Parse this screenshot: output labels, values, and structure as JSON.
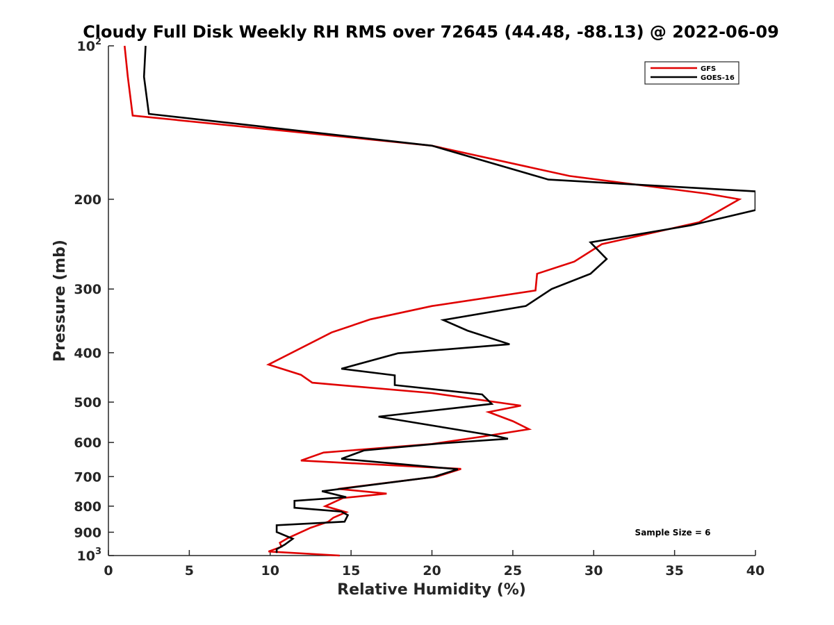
{
  "chart_data": {
    "type": "line",
    "title": "Cloudy Full Disk Weekly RH RMS over 72645 (44.48, -88.13) @ 2022-06-09",
    "xlabel": "Relative Humidity (%)",
    "ylabel": "Pressure (mb)",
    "xlim": [
      0,
      40
    ],
    "ylim": [
      100,
      1000
    ],
    "y_scale": "log",
    "y_reversed": true,
    "x_ticks": [
      "0",
      "5",
      "10",
      "15",
      "20",
      "25",
      "30",
      "35",
      "40"
    ],
    "y_ticks": [
      {
        "value": 100,
        "base": "10",
        "exp": "2"
      },
      {
        "value": 200,
        "label": "200"
      },
      {
        "value": 300,
        "label": "300"
      },
      {
        "value": 400,
        "label": "400"
      },
      {
        "value": 500,
        "label": "500"
      },
      {
        "value": 600,
        "label": "600"
      },
      {
        "value": 700,
        "label": "700"
      },
      {
        "value": 800,
        "label": "800"
      },
      {
        "value": 900,
        "label": "900"
      },
      {
        "value": 1000,
        "base": "10",
        "exp": "3"
      }
    ],
    "legend_position": "top-right",
    "annotation": "Sample Size = 6",
    "series": [
      {
        "name": "GFS",
        "color": "#e00000",
        "points": [
          [
            1.0,
            100
          ],
          [
            1.2,
            115
          ],
          [
            1.5,
            137
          ],
          [
            20,
            157
          ],
          [
            28.5,
            180
          ],
          [
            37,
            195
          ],
          [
            39,
            200
          ],
          [
            36.5,
            222
          ],
          [
            30.5,
            245
          ],
          [
            28.8,
            265
          ],
          [
            26.5,
            280
          ],
          [
            26.4,
            302
          ],
          [
            20,
            324
          ],
          [
            16.2,
            344
          ],
          [
            13.8,
            365
          ],
          [
            9.9,
            422
          ],
          [
            11.9,
            442
          ],
          [
            12.6,
            458
          ],
          [
            20,
            480
          ],
          [
            25.5,
            508
          ],
          [
            23.5,
            523
          ],
          [
            25,
            545
          ],
          [
            26,
            565
          ],
          [
            23,
            585
          ],
          [
            20,
            604
          ],
          [
            13.3,
            628
          ],
          [
            11.9,
            651
          ],
          [
            21.8,
            676
          ],
          [
            20.3,
            700
          ],
          [
            14.2,
            740
          ],
          [
            17.2,
            756
          ],
          [
            14.5,
            771
          ],
          [
            13.4,
            800
          ],
          [
            14.7,
            822
          ],
          [
            13.9,
            843
          ],
          [
            13.6,
            858
          ],
          [
            12.5,
            882
          ],
          [
            11.1,
            924
          ],
          [
            10.6,
            944
          ],
          [
            10.7,
            961
          ],
          [
            9.9,
            982
          ],
          [
            14.3,
            1000
          ]
        ]
      },
      {
        "name": "GOES-16",
        "color": "#000000",
        "points": [
          [
            2.3,
            100
          ],
          [
            2.2,
            115
          ],
          [
            2.5,
            136
          ],
          [
            20,
            157
          ],
          [
            27.2,
            183
          ],
          [
            40,
            193
          ],
          [
            40,
            210
          ],
          [
            36,
            225
          ],
          [
            29.8,
            243
          ],
          [
            30.8,
            262
          ],
          [
            29.8,
            280
          ],
          [
            27.4,
            300
          ],
          [
            25.8,
            324
          ],
          [
            20.7,
            345
          ],
          [
            22.2,
            362
          ],
          [
            24.8,
            385
          ],
          [
            17.9,
            401
          ],
          [
            14.4,
            430
          ],
          [
            17.7,
            443
          ],
          [
            17.7,
            463
          ],
          [
            23.1,
            483
          ],
          [
            23.7,
            504
          ],
          [
            16.7,
            534
          ],
          [
            24.0,
            583
          ],
          [
            24.7,
            590
          ],
          [
            20.4,
            603
          ],
          [
            15.8,
            622
          ],
          [
            14.4,
            646
          ],
          [
            21.6,
            677
          ],
          [
            20.1,
            701
          ],
          [
            16.2,
            727
          ],
          [
            13.2,
            748
          ],
          [
            14.7,
            768
          ],
          [
            11.5,
            781
          ],
          [
            11.5,
            806
          ],
          [
            14.4,
            820
          ],
          [
            14.8,
            833
          ],
          [
            14.6,
            858
          ],
          [
            10.4,
            872
          ],
          [
            10.4,
            899
          ],
          [
            11.4,
            927
          ],
          [
            10.9,
            952
          ],
          [
            10.4,
            972
          ],
          [
            10.4,
            988
          ]
        ]
      }
    ]
  }
}
